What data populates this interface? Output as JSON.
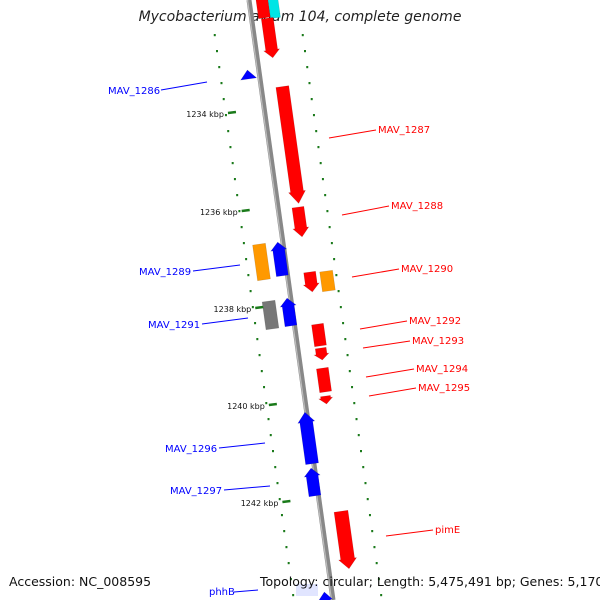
{
  "title": "Mycobacterium avium 104, complete genome",
  "footer": {
    "accession": "Accession: NC_008595",
    "summary": "Topology: circular; Length: 5,475,491 bp; Genes: 5,170"
  },
  "colors": {
    "forward": "#ff0000",
    "reverse": "#0000ff",
    "orange": "#ff9900",
    "gray": "#777777",
    "cyan": "#00e5e5",
    "tick": "#1a7a1a",
    "backbone": "#888888"
  },
  "ticks": [
    {
      "label": "1234 kbp"
    },
    {
      "label": "1236 kbp"
    },
    {
      "label": "1238 kbp"
    },
    {
      "label": "1240 kbp"
    },
    {
      "label": "1242 kbp"
    }
  ],
  "genes": [
    {
      "label": "MAV_1286",
      "strand": "reverse",
      "color": "#0000ff"
    },
    {
      "label": "MAV_1287",
      "strand": "forward",
      "color": "#ff0000"
    },
    {
      "label": "MAV_1288",
      "strand": "forward",
      "color": "#ff0000"
    },
    {
      "label": "MAV_1289",
      "strand": "reverse",
      "color": "#0000ff"
    },
    {
      "label": "MAV_1290",
      "strand": "forward",
      "color": "#ff0000"
    },
    {
      "label": "MAV_1291",
      "strand": "reverse",
      "color": "#0000ff"
    },
    {
      "label": "MAV_1292",
      "strand": "forward",
      "color": "#ff0000"
    },
    {
      "label": "MAV_1293",
      "strand": "forward",
      "color": "#ff0000"
    },
    {
      "label": "MAV_1294",
      "strand": "forward",
      "color": "#ff0000"
    },
    {
      "label": "MAV_1295",
      "strand": "forward",
      "color": "#ff0000"
    },
    {
      "label": "MAV_1296",
      "strand": "reverse",
      "color": "#0000ff"
    },
    {
      "label": "MAV_1297",
      "strand": "reverse",
      "color": "#0000ff"
    },
    {
      "label": "pimE",
      "strand": "forward",
      "color": "#ff0000"
    },
    {
      "label": "phhB",
      "strand": "reverse",
      "color": "#0000ff"
    }
  ]
}
